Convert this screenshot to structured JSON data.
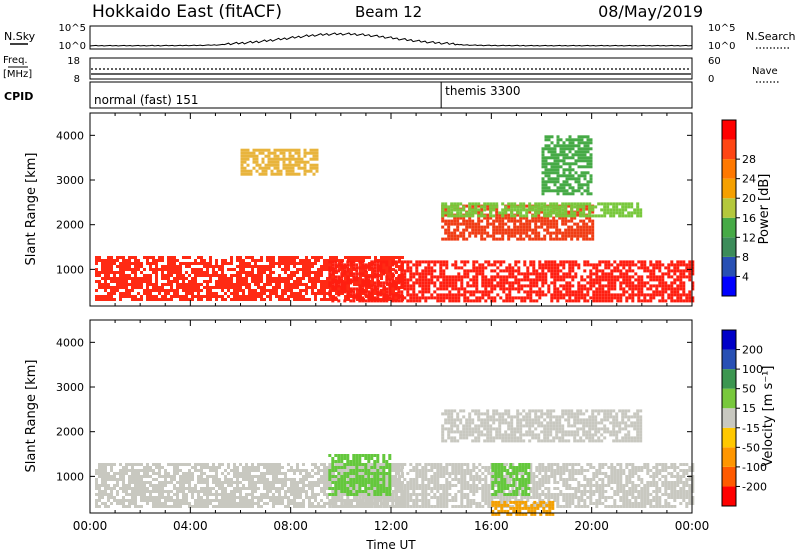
{
  "header": {
    "site": "Hokkaido East (fitACF)",
    "beam": "Beam 12",
    "date": "08/May/2019"
  },
  "nsky_panel": {
    "label": "N.Sky",
    "right_label": "N.Search",
    "left_ticks": [
      "10^5",
      "10^0"
    ],
    "right_ticks": [
      "10^5",
      "10^0"
    ]
  },
  "freq_panel": {
    "label_top": "Freq.",
    "label_bottom": "[MHz]",
    "left_ticks": [
      "18",
      "8"
    ],
    "right_ticks": [
      "60",
      "0"
    ],
    "right_label": "Nave"
  },
  "cpid_panel": {
    "label": "CPID",
    "modes": [
      {
        "name": "normal (fast) 151",
        "start_hour": 0
      },
      {
        "name": "themis 3300",
        "start_hour": 14
      }
    ]
  },
  "chart_data": [
    {
      "type": "heatmap",
      "name": "power",
      "ylabel": "Slant Range [km]",
      "ylim": [
        180,
        4500
      ],
      "yticks": [
        "1000",
        "2000",
        "3000",
        "4000"
      ],
      "colorbar": {
        "label": "Power [dB]",
        "ticks": [
          "4",
          "8",
          "12",
          "16",
          "20",
          "24",
          "28"
        ],
        "colors": [
          "#0000ff",
          "#2850b4",
          "#3c8c5a",
          "#46aa46",
          "#b4c83c",
          "#f5a000",
          "#ff7800",
          "#ff4614",
          "#ff0000"
        ]
      },
      "echo_regions": [
        {
          "t0": 0.2,
          "t1": 12.5,
          "r0": 300,
          "r1": 1300,
          "color": "#ff2a14"
        },
        {
          "t0": 9.5,
          "t1": 24.0,
          "r0": 300,
          "r1": 1200,
          "color": "#ff1e10"
        },
        {
          "t0": 14.0,
          "t1": 20.0,
          "r0": 1700,
          "r1": 2450,
          "color": "#f03c14"
        },
        {
          "t0": 6.0,
          "t1": 9.0,
          "r0": 3100,
          "r1": 3700,
          "color": "#e8b43c"
        },
        {
          "t0": 14.0,
          "t1": 22.0,
          "r0": 2200,
          "r1": 2500,
          "color": "#78c83c"
        },
        {
          "t0": 18.0,
          "t1": 20.0,
          "r0": 2700,
          "r1": 4000,
          "color": "#46aa46"
        }
      ]
    },
    {
      "type": "heatmap",
      "name": "velocity",
      "xlabel": "Time UT",
      "ylabel": "Slant Range [km]",
      "ylim": [
        180,
        4500
      ],
      "yticks": [
        "1000",
        "2000",
        "3000",
        "4000"
      ],
      "xticks": [
        "00:00",
        "04:00",
        "08:00",
        "12:00",
        "16:00",
        "20:00",
        "00:00"
      ],
      "colorbar": {
        "label": "Velocity [m s⁻¹]",
        "ticks": [
          "-200",
          "-100",
          "-50",
          "-15",
          "15",
          "50",
          "100",
          "200"
        ],
        "colors": [
          "#ff0000",
          "#ff5a00",
          "#ff9600",
          "#ffc800",
          "#c8c8c0",
          "#78c83c",
          "#3c9650",
          "#2850b4",
          "#0000c8"
        ]
      },
      "echo_regions": [
        {
          "t0": 0.2,
          "t1": 12.5,
          "r0": 300,
          "r1": 1300,
          "color": "#c8c8c0"
        },
        {
          "t0": 9.5,
          "t1": 24.0,
          "r0": 300,
          "r1": 1300,
          "color": "#c8c8c0"
        },
        {
          "t0": 14.0,
          "t1": 22.0,
          "r0": 1800,
          "r1": 2500,
          "color": "#c8c8c0"
        },
        {
          "t0": 9.5,
          "t1": 12.0,
          "r0": 600,
          "r1": 1500,
          "color": "#64c83c"
        },
        {
          "t0": 16.0,
          "t1": 17.5,
          "r0": 600,
          "r1": 1300,
          "color": "#64c83c"
        },
        {
          "t0": 16.0,
          "t1": 18.5,
          "r0": 180,
          "r1": 450,
          "color": "#f5a000"
        }
      ]
    }
  ]
}
